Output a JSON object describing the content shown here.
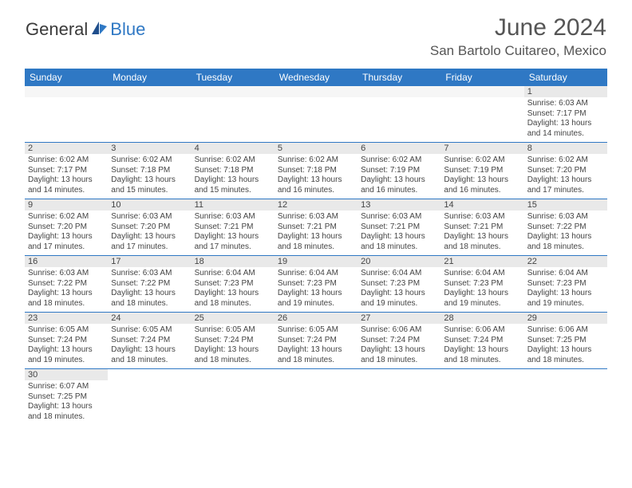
{
  "brand": {
    "general": "General",
    "blue": "Blue"
  },
  "title": "June 2024",
  "location": "San Bartolo Cuitareo, Mexico",
  "day_headers": [
    "Sunday",
    "Monday",
    "Tuesday",
    "Wednesday",
    "Thursday",
    "Friday",
    "Saturday"
  ],
  "colors": {
    "headerbar": "#2f78c4",
    "daynum_bg": "#e9e9e9",
    "cell_border": "#2f78c4",
    "text": "#444444",
    "title_text": "#555555"
  },
  "weeks": [
    [
      null,
      null,
      null,
      null,
      null,
      null,
      {
        "n": "1",
        "sunrise": "Sunrise: 6:03 AM",
        "sunset": "Sunset: 7:17 PM",
        "daylight": "Daylight: 13 hours and 14 minutes."
      }
    ],
    [
      {
        "n": "2",
        "sunrise": "Sunrise: 6:02 AM",
        "sunset": "Sunset: 7:17 PM",
        "daylight": "Daylight: 13 hours and 14 minutes."
      },
      {
        "n": "3",
        "sunrise": "Sunrise: 6:02 AM",
        "sunset": "Sunset: 7:18 PM",
        "daylight": "Daylight: 13 hours and 15 minutes."
      },
      {
        "n": "4",
        "sunrise": "Sunrise: 6:02 AM",
        "sunset": "Sunset: 7:18 PM",
        "daylight": "Daylight: 13 hours and 15 minutes."
      },
      {
        "n": "5",
        "sunrise": "Sunrise: 6:02 AM",
        "sunset": "Sunset: 7:18 PM",
        "daylight": "Daylight: 13 hours and 16 minutes."
      },
      {
        "n": "6",
        "sunrise": "Sunrise: 6:02 AM",
        "sunset": "Sunset: 7:19 PM",
        "daylight": "Daylight: 13 hours and 16 minutes."
      },
      {
        "n": "7",
        "sunrise": "Sunrise: 6:02 AM",
        "sunset": "Sunset: 7:19 PM",
        "daylight": "Daylight: 13 hours and 16 minutes."
      },
      {
        "n": "8",
        "sunrise": "Sunrise: 6:02 AM",
        "sunset": "Sunset: 7:20 PM",
        "daylight": "Daylight: 13 hours and 17 minutes."
      }
    ],
    [
      {
        "n": "9",
        "sunrise": "Sunrise: 6:02 AM",
        "sunset": "Sunset: 7:20 PM",
        "daylight": "Daylight: 13 hours and 17 minutes."
      },
      {
        "n": "10",
        "sunrise": "Sunrise: 6:03 AM",
        "sunset": "Sunset: 7:20 PM",
        "daylight": "Daylight: 13 hours and 17 minutes."
      },
      {
        "n": "11",
        "sunrise": "Sunrise: 6:03 AM",
        "sunset": "Sunset: 7:21 PM",
        "daylight": "Daylight: 13 hours and 17 minutes."
      },
      {
        "n": "12",
        "sunrise": "Sunrise: 6:03 AM",
        "sunset": "Sunset: 7:21 PM",
        "daylight": "Daylight: 13 hours and 18 minutes."
      },
      {
        "n": "13",
        "sunrise": "Sunrise: 6:03 AM",
        "sunset": "Sunset: 7:21 PM",
        "daylight": "Daylight: 13 hours and 18 minutes."
      },
      {
        "n": "14",
        "sunrise": "Sunrise: 6:03 AM",
        "sunset": "Sunset: 7:21 PM",
        "daylight": "Daylight: 13 hours and 18 minutes."
      },
      {
        "n": "15",
        "sunrise": "Sunrise: 6:03 AM",
        "sunset": "Sunset: 7:22 PM",
        "daylight": "Daylight: 13 hours and 18 minutes."
      }
    ],
    [
      {
        "n": "16",
        "sunrise": "Sunrise: 6:03 AM",
        "sunset": "Sunset: 7:22 PM",
        "daylight": "Daylight: 13 hours and 18 minutes."
      },
      {
        "n": "17",
        "sunrise": "Sunrise: 6:03 AM",
        "sunset": "Sunset: 7:22 PM",
        "daylight": "Daylight: 13 hours and 18 minutes."
      },
      {
        "n": "18",
        "sunrise": "Sunrise: 6:04 AM",
        "sunset": "Sunset: 7:23 PM",
        "daylight": "Daylight: 13 hours and 18 minutes."
      },
      {
        "n": "19",
        "sunrise": "Sunrise: 6:04 AM",
        "sunset": "Sunset: 7:23 PM",
        "daylight": "Daylight: 13 hours and 19 minutes."
      },
      {
        "n": "20",
        "sunrise": "Sunrise: 6:04 AM",
        "sunset": "Sunset: 7:23 PM",
        "daylight": "Daylight: 13 hours and 19 minutes."
      },
      {
        "n": "21",
        "sunrise": "Sunrise: 6:04 AM",
        "sunset": "Sunset: 7:23 PM",
        "daylight": "Daylight: 13 hours and 19 minutes."
      },
      {
        "n": "22",
        "sunrise": "Sunrise: 6:04 AM",
        "sunset": "Sunset: 7:23 PM",
        "daylight": "Daylight: 13 hours and 19 minutes."
      }
    ],
    [
      {
        "n": "23",
        "sunrise": "Sunrise: 6:05 AM",
        "sunset": "Sunset: 7:24 PM",
        "daylight": "Daylight: 13 hours and 19 minutes."
      },
      {
        "n": "24",
        "sunrise": "Sunrise: 6:05 AM",
        "sunset": "Sunset: 7:24 PM",
        "daylight": "Daylight: 13 hours and 18 minutes."
      },
      {
        "n": "25",
        "sunrise": "Sunrise: 6:05 AM",
        "sunset": "Sunset: 7:24 PM",
        "daylight": "Daylight: 13 hours and 18 minutes."
      },
      {
        "n": "26",
        "sunrise": "Sunrise: 6:05 AM",
        "sunset": "Sunset: 7:24 PM",
        "daylight": "Daylight: 13 hours and 18 minutes."
      },
      {
        "n": "27",
        "sunrise": "Sunrise: 6:06 AM",
        "sunset": "Sunset: 7:24 PM",
        "daylight": "Daylight: 13 hours and 18 minutes."
      },
      {
        "n": "28",
        "sunrise": "Sunrise: 6:06 AM",
        "sunset": "Sunset: 7:24 PM",
        "daylight": "Daylight: 13 hours and 18 minutes."
      },
      {
        "n": "29",
        "sunrise": "Sunrise: 6:06 AM",
        "sunset": "Sunset: 7:25 PM",
        "daylight": "Daylight: 13 hours and 18 minutes."
      }
    ],
    [
      {
        "n": "30",
        "sunrise": "Sunrise: 6:07 AM",
        "sunset": "Sunset: 7:25 PM",
        "daylight": "Daylight: 13 hours and 18 minutes."
      },
      null,
      null,
      null,
      null,
      null,
      null
    ]
  ]
}
